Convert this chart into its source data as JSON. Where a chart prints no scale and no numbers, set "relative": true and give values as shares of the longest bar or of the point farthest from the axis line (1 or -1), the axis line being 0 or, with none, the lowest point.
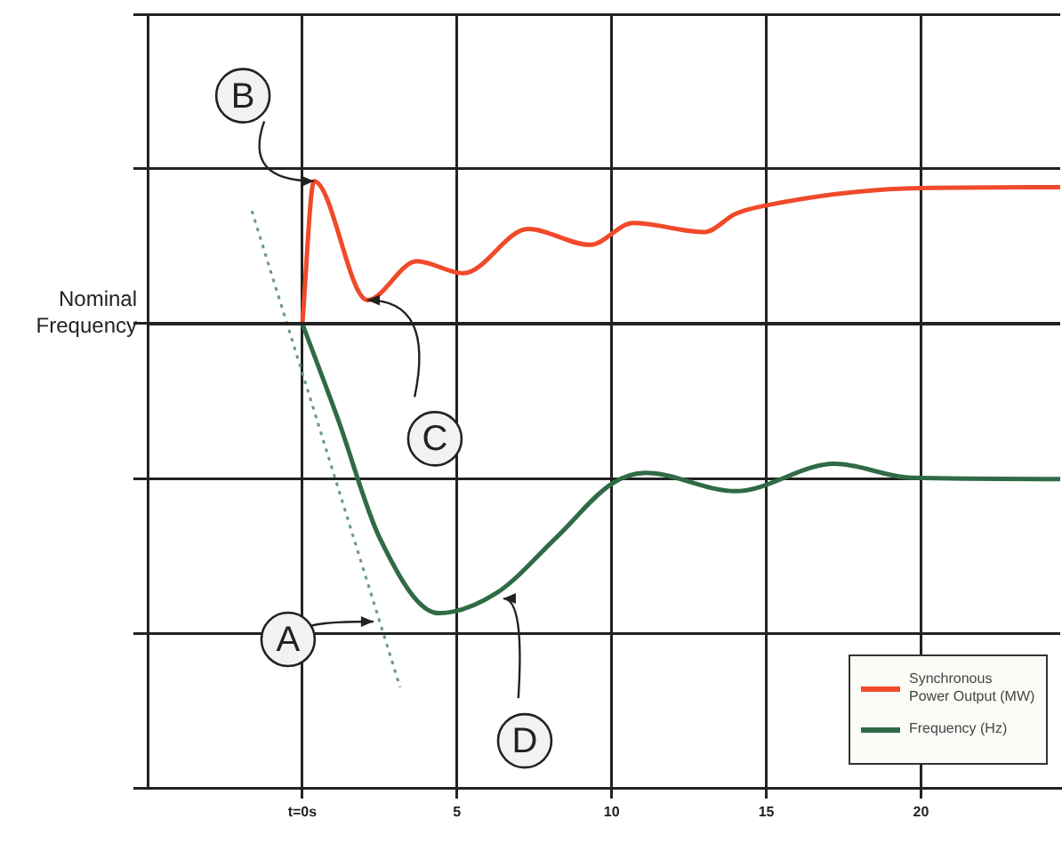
{
  "chart_data": {
    "type": "line",
    "relative": true,
    "xlim": [
      -5,
      24.5
    ],
    "xticks": [
      {
        "value": 0,
        "label": "t=0s"
      },
      5,
      10,
      15,
      20
    ],
    "grid": true,
    "legend": "bottom right",
    "marker": "none",
    "line_style": "solid",
    "ref_lines": [
      {
        "axis": "y",
        "value": 0.765,
        "label": "Nominal Frequency",
        "color": "#222222"
      }
    ],
    "series": [
      {
        "name": "Synchronous Power Output (MW)",
        "color": "#f04a2a",
        "x": [
          0,
          0.38,
          2.1,
          3.7,
          5.2,
          7.3,
          9.3,
          10.7,
          13.0,
          14.0,
          14.9,
          19.7,
          24.5
        ],
        "values": [
          0.765,
          1,
          0.804,
          0.868,
          0.848,
          0.921,
          0.895,
          0.931,
          0.916,
          0.946,
          0.959,
          0.988,
          0.99
        ]
      },
      {
        "name": "Frequency (Hz)",
        "color": "#2f6b45",
        "x": [
          0,
          1.15,
          2.5,
          4.4,
          6.3,
          8.2,
          10.0,
          11.1,
          14.0,
          17.2,
          19.7,
          24.5
        ],
        "values": [
          0.765,
          0.608,
          0.412,
          0.288,
          0.322,
          0.412,
          0.501,
          0.519,
          0.489,
          0.534,
          0.511,
          0.509
        ]
      },
      {
        "color": "#6a9a7a",
        "line_style": "dotted",
        "x": [
          -1.63,
          3.16
        ],
        "values": [
          0.951,
          0.166
        ]
      }
    ],
    "annotations": [
      {
        "text": "A",
        "x": 2.3,
        "y": 0.274
      },
      {
        "text": "B",
        "x": 0.38,
        "y": 1
      },
      {
        "text": "C",
        "x": 2.1,
        "y": 0.804
      },
      {
        "text": "D",
        "x": 6.5,
        "y": 0.312
      }
    ]
  }
}
